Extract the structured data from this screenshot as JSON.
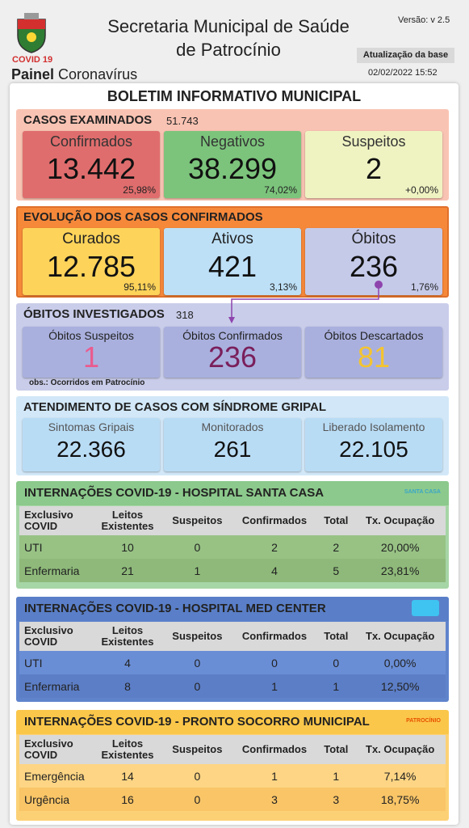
{
  "header": {
    "badge": "COVID 19",
    "panel_bold": "Painel",
    "panel_rest": "Coronavírus",
    "title_lines": [
      "Secretaria Municipal de Saúde",
      "de Patrocínio"
    ],
    "version": "Versão: v 2.5",
    "update_label": "Atualização da base",
    "update_date": "02/02/2022 15:52"
  },
  "bulletin_title": "BOLETIM INFORMATIVO MUNICIPAL",
  "summary_sections": [
    {
      "title": "CASOS EXAMINADOS",
      "total": "51.743",
      "cards": [
        {
          "label": "Confirmados",
          "value": "13.442",
          "percent": "25,98%"
        },
        {
          "label": "Negativos",
          "value": "38.299",
          "percent": "74,02%"
        },
        {
          "label": "Suspeitos",
          "value": "2",
          "percent": "+0,00%"
        }
      ]
    },
    {
      "title": "EVOLUÇÃO DOS CASOS CONFIRMADOS",
      "cards": [
        {
          "label": "Curados",
          "value": "12.785",
          "percent": "95,11%"
        },
        {
          "label": "Ativos",
          "value": "421",
          "percent": "3,13%"
        },
        {
          "label": "Óbitos",
          "value": "236",
          "percent": "1,76%"
        }
      ]
    },
    {
      "title": "ÓBITOS INVESTIGADOS",
      "total": "318",
      "note": "obs.: Ocorridos em Patrocínio",
      "cards": [
        {
          "label": "Óbitos Suspeitos",
          "value": "1"
        },
        {
          "label": "Óbitos Confirmados",
          "value": "236"
        },
        {
          "label": "Óbitos Descartados",
          "value": "81"
        }
      ]
    },
    {
      "title": "ATENDIMENTO DE CASOS COM SÍNDROME GRIPAL",
      "cards": [
        {
          "label": "Sintomas Gripais",
          "value": "22.366"
        },
        {
          "label": "Monitorados",
          "value": "261"
        },
        {
          "label": "Liberado Isolamento",
          "value": "22.105"
        }
      ]
    }
  ],
  "hospitals": [
    {
      "title": "INTERNAÇÕES COVID-19 - HOSPITAL SANTA CASA",
      "logo_text": "SANTA CASA",
      "columns": [
        "Exclusivo COVID",
        "Leitos Existentes",
        "Suspeitos",
        "Confirmados",
        "Total",
        "Tx. Ocupação"
      ],
      "rows": [
        [
          "UTI",
          "10",
          "0",
          "2",
          "2",
          "20,00%"
        ],
        [
          "Enfermaria",
          "21",
          "1",
          "4",
          "5",
          "23,81%"
        ]
      ]
    },
    {
      "title": "INTERNAÇÕES COVID-19 - HOSPITAL MED CENTER",
      "columns": [
        "Exclusivo COVID",
        "Leitos Existentes",
        "Suspeitos",
        "Confirmados",
        "Total",
        "Tx. Ocupação"
      ],
      "rows": [
        [
          "UTI",
          "4",
          "0",
          "0",
          "0",
          "0,00%"
        ],
        [
          "Enfermaria",
          "8",
          "0",
          "1",
          "1",
          "12,50%"
        ]
      ]
    },
    {
      "title": "INTERNAÇÕES COVID-19 - PRONTO SOCORRO MUNICIPAL",
      "logo_text": "PATROCÍNIO",
      "columns": [
        "Exclusivo COVID",
        "Leitos Existentes",
        "Suspeitos",
        "Confirmados",
        "Total",
        "Tx. Ocupação"
      ],
      "rows": [
        [
          "Emergência",
          "14",
          "0",
          "1",
          "1",
          "7,14%"
        ],
        [
          "Urgência",
          "16",
          "0",
          "3",
          "3",
          "18,75%"
        ]
      ]
    }
  ]
}
